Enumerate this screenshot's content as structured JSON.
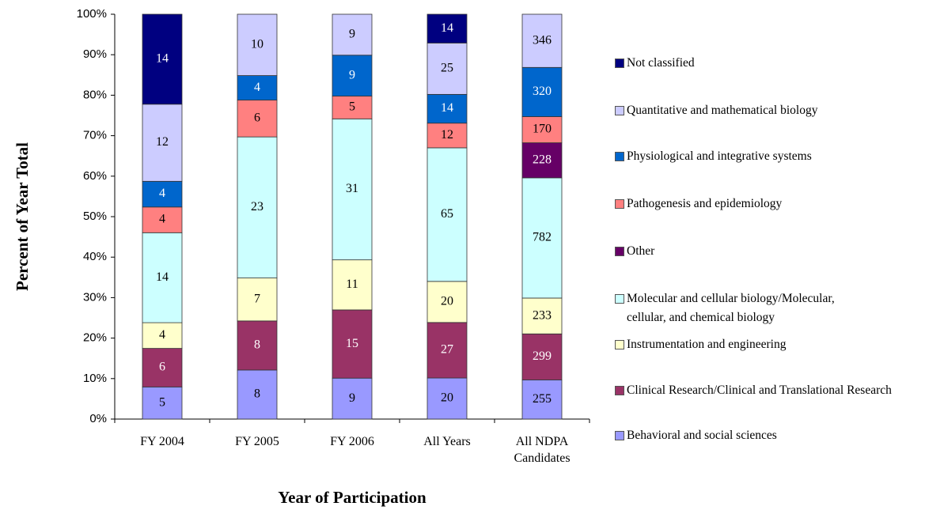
{
  "chart_data": {
    "type": "bar",
    "stacked": "percent",
    "ylabel": "Percent of Year Total",
    "xlabel": "Year of Participation",
    "categories": [
      "FY 2004",
      "FY 2005",
      "FY 2006",
      "All Years",
      "All NDPA Candidates"
    ],
    "series": [
      {
        "name": "Behavioral and social sciences",
        "color": "#9999ff",
        "values": [
          5,
          8,
          9,
          20,
          255
        ]
      },
      {
        "name": "Clinical Research/Clinical and Translational Research",
        "color": "#993366",
        "values": [
          6,
          8,
          15,
          27,
          299
        ]
      },
      {
        "name": "Instrumentation and engineering",
        "color": "#ffffcc",
        "values": [
          4,
          7,
          11,
          20,
          233
        ]
      },
      {
        "name": "Molecular and cellular biology/Molecular, cellular, and chemical biology",
        "color": "#ccffff",
        "values": [
          14,
          23,
          31,
          65,
          782
        ]
      },
      {
        "name": "Other",
        "color": "#660066",
        "values": [
          null,
          null,
          null,
          null,
          228
        ]
      },
      {
        "name": "Pathogenesis and epidemiology",
        "color": "#ff8080",
        "values": [
          4,
          6,
          5,
          12,
          170
        ]
      },
      {
        "name": "Physiological and integrative systems",
        "color": "#0066cc",
        "values": [
          4,
          4,
          9,
          14,
          320
        ]
      },
      {
        "name": "Quantitative and mathematical biology",
        "color": "#ccccff",
        "values": [
          12,
          10,
          9,
          25,
          346
        ]
      },
      {
        "name": "Not classified",
        "color": "#000080",
        "values": [
          14,
          null,
          null,
          14,
          null
        ]
      }
    ],
    "ylim": [
      0,
      100
    ],
    "yticks": [
      {
        "value": 0,
        "label": "0%"
      },
      {
        "value": 10,
        "label": "10%"
      },
      {
        "value": 20,
        "label": "20%"
      },
      {
        "value": 30,
        "label": "30%"
      },
      {
        "value": 40,
        "label": "40%"
      },
      {
        "value": 50,
        "label": "50%"
      },
      {
        "value": 60,
        "label": "60%"
      },
      {
        "value": 70,
        "label": "70%"
      },
      {
        "value": 80,
        "label": "80%"
      },
      {
        "value": 90,
        "label": "90%"
      },
      {
        "value": 100,
        "label": "100%"
      }
    ],
    "grid": false,
    "legend": "right"
  }
}
